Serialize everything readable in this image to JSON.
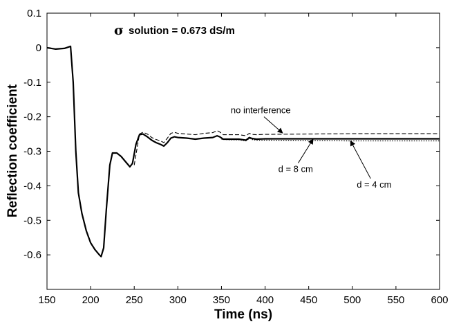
{
  "chart_data": {
    "type": "line",
    "title_symbol": "σ",
    "title": "solution = 0.673 dS/m",
    "xlabel": "Time (ns)",
    "ylabel": "Reflection coefficient",
    "xlim": [
      150,
      600
    ],
    "ylim": [
      -0.7,
      0.1
    ],
    "xticks": [
      150,
      200,
      250,
      300,
      350,
      400,
      450,
      500,
      550,
      600
    ],
    "yticks": [
      0.1,
      0,
      -0.1,
      -0.2,
      -0.3,
      -0.4,
      -0.5,
      -0.6
    ],
    "xtick_labels": [
      "150",
      "200",
      "250",
      "300",
      "350",
      "400",
      "450",
      "500",
      "550",
      "600"
    ],
    "ytick_labels": [
      "0.1",
      "0",
      "-0.1",
      "-0.2",
      "-0.3",
      "-0.4",
      "-0.5",
      "-0.6"
    ],
    "grid": false,
    "series": [
      {
        "name": "d = 8 cm",
        "style": "solid",
        "x": [
          150,
          160,
          170,
          177,
          180,
          183,
          186,
          190,
          195,
          200,
          205,
          210,
          212,
          215,
          218,
          222,
          225,
          230,
          235,
          240,
          245,
          248,
          252,
          256,
          260,
          265,
          270,
          275,
          280,
          284,
          288,
          292,
          296,
          300,
          310,
          320,
          330,
          340,
          345,
          348,
          352,
          360,
          370,
          378,
          382,
          385,
          390,
          400,
          450,
          500,
          550,
          600
        ],
        "y": [
          0.0,
          -0.004,
          -0.002,
          0.004,
          -0.1,
          -0.3,
          -0.42,
          -0.48,
          -0.53,
          -0.565,
          -0.585,
          -0.6,
          -0.605,
          -0.58,
          -0.47,
          -0.34,
          -0.305,
          -0.305,
          -0.315,
          -0.33,
          -0.345,
          -0.335,
          -0.28,
          -0.252,
          -0.25,
          -0.258,
          -0.268,
          -0.275,
          -0.28,
          -0.285,
          -0.275,
          -0.262,
          -0.258,
          -0.26,
          -0.262,
          -0.265,
          -0.262,
          -0.26,
          -0.255,
          -0.258,
          -0.265,
          -0.265,
          -0.265,
          -0.268,
          -0.26,
          -0.263,
          -0.265,
          -0.264,
          -0.264,
          -0.264,
          -0.264,
          -0.264
        ]
      },
      {
        "name": "no interference",
        "style": "dashed",
        "x": [
          250,
          256,
          260,
          265,
          270,
          275,
          280,
          284,
          288,
          292,
          296,
          300,
          310,
          320,
          330,
          340,
          345,
          348,
          352,
          360,
          370,
          378,
          382,
          385,
          390,
          400,
          450,
          500,
          550,
          600
        ],
        "y": [
          -0.34,
          -0.25,
          -0.245,
          -0.25,
          -0.26,
          -0.266,
          -0.27,
          -0.275,
          -0.262,
          -0.248,
          -0.245,
          -0.248,
          -0.25,
          -0.252,
          -0.248,
          -0.246,
          -0.24,
          -0.244,
          -0.252,
          -0.252,
          -0.252,
          -0.255,
          -0.248,
          -0.251,
          -0.252,
          -0.251,
          -0.25,
          -0.249,
          -0.249,
          -0.249
        ]
      },
      {
        "name": "d = 4 cm",
        "style": "dotted",
        "x": [
          350,
          360,
          370,
          378,
          382,
          385,
          390,
          400,
          450,
          500,
          550,
          600
        ],
        "y": [
          -0.265,
          -0.267,
          -0.267,
          -0.27,
          -0.263,
          -0.266,
          -0.268,
          -0.268,
          -0.269,
          -0.27,
          -0.27,
          -0.27
        ]
      }
    ],
    "annotations": [
      {
        "text": "no interference",
        "x": 395,
        "y": -0.19,
        "arrow_to": [
          420,
          -0.247
        ]
      },
      {
        "text": "d = 8 cm",
        "x": 435,
        "y": -0.36,
        "arrow_to": [
          455,
          -0.265
        ]
      },
      {
        "text": "d = 4 cm",
        "x": 525,
        "y": -0.405,
        "arrow_to": [
          498,
          -0.27
        ]
      }
    ]
  }
}
